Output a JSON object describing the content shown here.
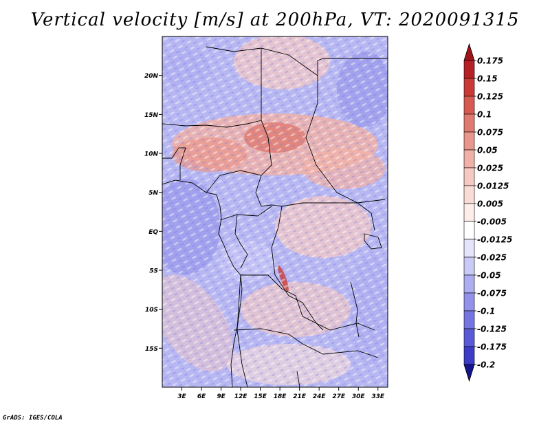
{
  "title": "Vertical velocity [m/s] at 200hPa, VT: 2020091315",
  "credit": "GrADS: IGES/COLA",
  "map": {
    "lon_range": [
      0,
      34.5
    ],
    "lat_range": [
      -20,
      25
    ],
    "lat_ticks": [
      {
        "value": 20,
        "label": "20N"
      },
      {
        "value": 15,
        "label": "15N"
      },
      {
        "value": 10,
        "label": "10N"
      },
      {
        "value": 5,
        "label": "5N"
      },
      {
        "value": 0,
        "label": "EQ"
      },
      {
        "value": -5,
        "label": "5S"
      },
      {
        "value": -10,
        "label": "10S"
      },
      {
        "value": -15,
        "label": "15S"
      }
    ],
    "lon_ticks": [
      {
        "value": 3,
        "label": "3E"
      },
      {
        "value": 6,
        "label": "6E"
      },
      {
        "value": 9,
        "label": "9E"
      },
      {
        "value": 12,
        "label": "12E"
      },
      {
        "value": 15,
        "label": "15E"
      },
      {
        "value": 18,
        "label": "18E"
      },
      {
        "value": 21,
        "label": "21E"
      },
      {
        "value": 24,
        "label": "24E"
      },
      {
        "value": 27,
        "label": "27E"
      },
      {
        "value": 30,
        "label": "30E"
      },
      {
        "value": 33,
        "label": "33E"
      }
    ]
  },
  "colorbar": {
    "levels": [
      {
        "label": "0.175",
        "color": "#b52025"
      },
      {
        "label": "0.15",
        "color": "#c93a36"
      },
      {
        "label": "0.125",
        "color": "#d65a52"
      },
      {
        "label": "0.1",
        "color": "#e07a70"
      },
      {
        "label": "0.075",
        "color": "#e9968c"
      },
      {
        "label": "0.05",
        "color": "#f0b1a8"
      },
      {
        "label": "0.025",
        "color": "#f6c9c2"
      },
      {
        "label": "0.0125",
        "color": "#fadcd6"
      },
      {
        "label": "0.005",
        "color": "#fdeeea"
      },
      {
        "label": "-0.005",
        "color": "#ffffff"
      },
      {
        "label": "-0.0125",
        "color": "#e4e4fb"
      },
      {
        "label": "-0.025",
        "color": "#cacaf6"
      },
      {
        "label": "-0.05",
        "color": "#adadf0"
      },
      {
        "label": "-0.075",
        "color": "#9292ea"
      },
      {
        "label": "-0.1",
        "color": "#7676e2"
      },
      {
        "label": "-0.125",
        "color": "#5a5ad8"
      },
      {
        "label": "-0.175",
        "color": "#3c3cc6"
      },
      {
        "label": "-0.2",
        "color": "#2424b0"
      }
    ],
    "top_triangle_color": "#9e1418",
    "bottom_triangle_color": "#14148e"
  }
}
